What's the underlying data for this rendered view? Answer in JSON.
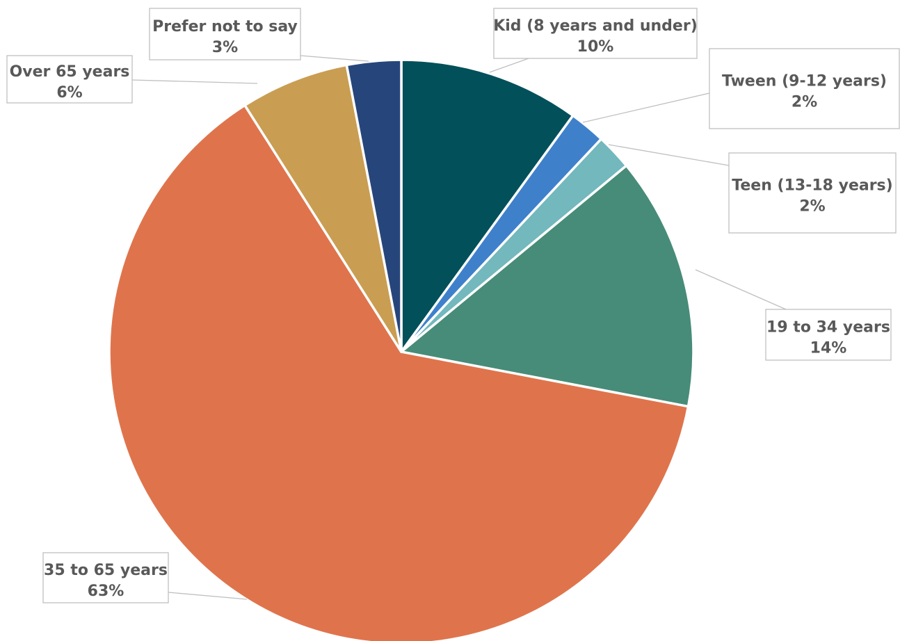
{
  "chart_data": {
    "type": "pie",
    "title": "",
    "start_angle_deg": 0,
    "direction": "clockwise",
    "legend": "none",
    "slices": [
      {
        "name": "Kid (8 years and under)",
        "value": 10,
        "label": "10%",
        "color": "#02505a"
      },
      {
        "name": "Tween (9-12 years)",
        "value": 2,
        "label": "2%",
        "color": "#3f80cb"
      },
      {
        "name": "Teen (13-18 years)",
        "value": 2,
        "label": "2%",
        "color": "#72b8bd"
      },
      {
        "name": "19 to 34 years",
        "value": 14,
        "label": "14%",
        "color": "#478c78"
      },
      {
        "name": "35 to 65 years",
        "value": 63,
        "label": "63%",
        "color": "#df744c"
      },
      {
        "name": "Over 65 years",
        "value": 6,
        "label": "6%",
        "color": "#c99e52"
      },
      {
        "name": "Prefer not to say",
        "value": 3,
        "label": "3%",
        "color": "#26467b"
      }
    ]
  }
}
